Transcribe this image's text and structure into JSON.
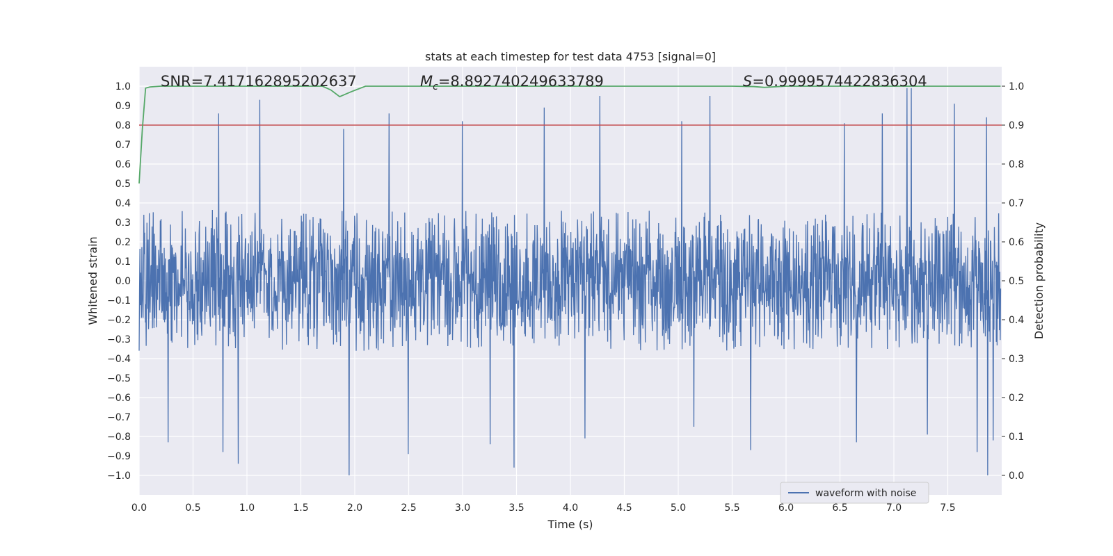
{
  "chart_data": {
    "type": "line",
    "title": "stats at each timestep for test data 4753 [signal=0]",
    "xlabel": "Time (s)",
    "ylabel": "Whitened strain",
    "y2label": "Detection probability",
    "xlim": [
      0.0,
      8.0
    ],
    "ylim": [
      -1.1,
      1.1
    ],
    "y2lim": [
      -0.05,
      1.05
    ],
    "xticks": [
      0.0,
      0.5,
      1.0,
      1.5,
      2.0,
      2.5,
      3.0,
      3.5,
      4.0,
      4.5,
      5.0,
      5.5,
      6.0,
      6.5,
      7.0,
      7.5
    ],
    "xtick_labels": [
      "0.0",
      "0.5",
      "1.0",
      "1.5",
      "2.0",
      "2.5",
      "3.0",
      "3.5",
      "4.0",
      "4.5",
      "5.0",
      "5.5",
      "6.0",
      "6.5",
      "7.0",
      "7.5"
    ],
    "yticks": [
      1.0,
      0.9,
      0.8,
      0.7,
      0.6,
      0.5,
      0.4,
      0.3,
      0.2,
      0.1,
      0.0,
      -0.1,
      -0.2,
      -0.3,
      -0.4,
      -0.5,
      -0.6,
      -0.7,
      -0.8,
      -0.9,
      -1.0
    ],
    "ytick_labels": [
      "1.0",
      "0.9",
      "0.8",
      "0.7",
      "0.6",
      "0.5",
      "0.4",
      "0.3",
      "0.2",
      "0.1",
      "0.0",
      "−0.1",
      "−0.2",
      "−0.3",
      "−0.4",
      "−0.5",
      "−0.6",
      "−0.7",
      "−0.8",
      "−0.9",
      "−1.0"
    ],
    "y2ticks": [
      1.0,
      0.9,
      0.8,
      0.7,
      0.6,
      0.5,
      0.4,
      0.3,
      0.2,
      0.1,
      0.0
    ],
    "y2tick_labels": [
      "1.0",
      "0.9",
      "0.8",
      "0.7",
      "0.6",
      "0.5",
      "0.4",
      "0.3",
      "0.2",
      "0.1",
      "0.0"
    ],
    "grid": true,
    "legend": {
      "position": "lower-right",
      "label": "waveform with noise"
    },
    "annotations": {
      "snr": "SNR=7.417162895202637",
      "mc_prefix": "M",
      "mc_sub": "c",
      "mc_value": "=8.892740249633789",
      "s_prefix": "S",
      "s_value": "=0.9999574422836304"
    },
    "threshold": {
      "y2": 0.9,
      "color": "#c44e52"
    },
    "series": [
      {
        "name": "waveform with noise",
        "axis": "left",
        "color": "#4c72b0",
        "description": "dense noisy whitened strain, bulk within about ±0.45 with spikes to about ±1.0",
        "band": 0.4,
        "spikes": [
          [
            0.74,
            0.86
          ],
          [
            1.12,
            0.93
          ],
          [
            1.9,
            0.78
          ],
          [
            2.32,
            0.86
          ],
          [
            3.0,
            0.82
          ],
          [
            3.76,
            0.89
          ],
          [
            4.28,
            0.95
          ],
          [
            5.04,
            0.82
          ],
          [
            5.3,
            0.95
          ],
          [
            6.55,
            0.81
          ],
          [
            6.9,
            0.86
          ],
          [
            7.13,
            0.99
          ],
          [
            7.17,
            0.99
          ],
          [
            7.57,
            0.91
          ],
          [
            7.87,
            0.84
          ],
          [
            0.92,
            -0.94
          ],
          [
            1.95,
            -1.0
          ],
          [
            3.48,
            -0.96
          ],
          [
            0.78,
            -0.88
          ],
          [
            4.14,
            -0.81
          ],
          [
            5.68,
            -0.87
          ],
          [
            6.66,
            -0.83
          ],
          [
            7.88,
            -1.0
          ],
          [
            7.93,
            -0.82
          ],
          [
            0.27,
            -0.83
          ],
          [
            2.5,
            -0.89
          ],
          [
            3.26,
            -0.84
          ],
          [
            7.32,
            -0.79
          ],
          [
            7.78,
            -0.88
          ],
          [
            5.15,
            -0.75
          ]
        ]
      },
      {
        "name": "detection probability",
        "axis": "right",
        "color": "#55a868",
        "x": [
          0.0,
          0.03,
          0.06,
          0.1,
          0.2,
          1.0,
          1.7,
          1.78,
          1.86,
          1.96,
          2.1,
          3.0,
          5.5,
          5.7,
          5.8,
          6.0,
          7.0,
          7.99
        ],
        "values": [
          0.75,
          0.89,
          0.995,
          0.998,
          1.0,
          1.0,
          1.0,
          0.99,
          0.973,
          0.985,
          1.0,
          1.0,
          1.0,
          0.999,
          0.997,
          1.0,
          1.0,
          1.0
        ]
      }
    ]
  }
}
